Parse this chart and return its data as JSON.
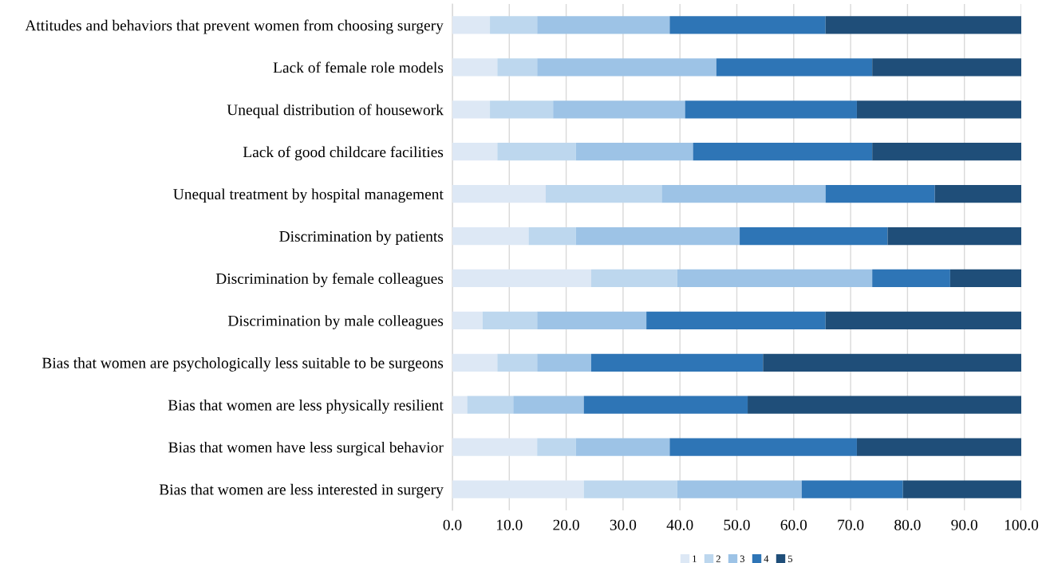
{
  "chart_data": {
    "type": "bar",
    "orientation": "horizontal",
    "stacked": true,
    "categories": [
      "Attitudes and behaviors that prevent women from choosing surgery",
      "Lack of female role models",
      "Unequal distribution of housework",
      "Lack of good childcare facilities",
      "Unequal treatment by hospital management",
      "Discrimination by patients",
      "Discrimination by female colleagues",
      "Discrimination by male colleagues",
      "Bias that women are psychologically less suitable to be surgeons",
      "Bias that women are less physically resilient",
      "Bias that women have less surgical behavior",
      "Bias that women are less interested in surgery"
    ],
    "series": [
      {
        "name": "1",
        "color": "#dde8f5",
        "values": [
          6.6,
          7.9,
          6.6,
          7.9,
          16.4,
          13.4,
          24.4,
          5.3,
          7.9,
          2.6,
          14.9,
          23.1
        ]
      },
      {
        "name": "2",
        "color": "#bdd7ee",
        "values": [
          8.3,
          7.0,
          11.1,
          13.8,
          20.4,
          8.3,
          15.1,
          9.6,
          7.0,
          8.1,
          6.8,
          16.4
        ]
      },
      {
        "name": "3",
        "color": "#9dc3e6",
        "values": [
          23.3,
          31.5,
          23.2,
          20.6,
          28.8,
          28.8,
          34.3,
          19.2,
          9.5,
          12.4,
          16.5,
          21.9
        ]
      },
      {
        "name": "4",
        "color": "#2e75b6",
        "values": [
          27.4,
          27.4,
          30.2,
          31.5,
          19.2,
          26.0,
          13.7,
          31.5,
          30.2,
          28.8,
          32.9,
          17.8
        ]
      },
      {
        "name": "5",
        "color": "#1f4e79",
        "values": [
          34.4,
          26.2,
          28.9,
          26.2,
          15.2,
          23.5,
          12.5,
          34.4,
          45.4,
          48.1,
          28.9,
          20.8
        ]
      }
    ],
    "xlim": [
      0,
      100
    ],
    "xticks": [
      {
        "value": 0,
        "label": "0.0"
      },
      {
        "value": 10,
        "label": "10.0"
      },
      {
        "value": 20,
        "label": "20.0"
      },
      {
        "value": 30,
        "label": "30.0"
      },
      {
        "value": 40,
        "label": "40.0"
      },
      {
        "value": 50,
        "label": "50.0"
      },
      {
        "value": 60,
        "label": "60.0"
      },
      {
        "value": 70,
        "label": "70.0"
      },
      {
        "value": 80,
        "label": "80.0"
      },
      {
        "value": 90,
        "label": "90.0"
      },
      {
        "value": 100,
        "label": "100.0"
      }
    ],
    "grid": "x",
    "legend": "bottom"
  }
}
